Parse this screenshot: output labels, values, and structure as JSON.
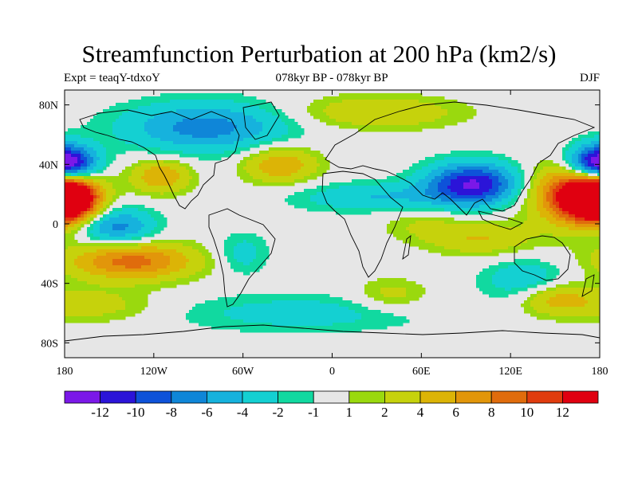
{
  "chart_data": {
    "type": "heatmap",
    "title": "Streamfunction Perturbation at 200 hPa (km2/s)",
    "subtitle_left": "Expt = teaqY-tdxoY",
    "subtitle_center": "078kyr BP - 078kyr BP",
    "subtitle_right": "DJF",
    "x_ticks": [
      {
        "value": -180,
        "label": "180"
      },
      {
        "value": -120,
        "label": "120W"
      },
      {
        "value": -60,
        "label": "60W"
      },
      {
        "value": 0,
        "label": "0"
      },
      {
        "value": 60,
        "label": "60E"
      },
      {
        "value": 120,
        "label": "120E"
      },
      {
        "value": 180,
        "label": "180"
      }
    ],
    "y_ticks": [
      {
        "value": 80,
        "label": "80N"
      },
      {
        "value": 40,
        "label": "40N"
      },
      {
        "value": 0,
        "label": "0"
      },
      {
        "value": -40,
        "label": "40S"
      },
      {
        "value": -80,
        "label": "80S"
      }
    ],
    "xlim": [
      -180,
      180
    ],
    "ylim": [
      -90,
      90
    ],
    "colorbar": {
      "colors": [
        "#7b18e8",
        "#2b14d8",
        "#0e52d9",
        "#0f86d8",
        "#16b2dd",
        "#14d0d2",
        "#11d9a0",
        "#e6e6e6",
        "#9ad90e",
        "#c6d20c",
        "#dcb406",
        "#e2960a",
        "#e06c0c",
        "#e03c0e",
        "#e00010"
      ],
      "labels": [
        "-12",
        "-10",
        "-8",
        "-6",
        "-4",
        "-2",
        "-1",
        "1",
        "2",
        "4",
        "6",
        "8",
        "10",
        "12"
      ],
      "levels": [
        -12,
        -10,
        -8,
        -6,
        -4,
        -2,
        -1,
        1,
        2,
        4,
        6,
        8,
        10,
        12
      ]
    },
    "field_features": [
      {
        "lon": -178,
        "lat": 40,
        "amp": -9,
        "sx": 14,
        "sy": 9
      },
      {
        "lon": 178,
        "lat": 40,
        "amp": -9,
        "sx": 14,
        "sy": 9
      },
      {
        "lon": -178,
        "lat": 17,
        "amp": 11,
        "sx": 14,
        "sy": 10
      },
      {
        "lon": 178,
        "lat": 17,
        "amp": 11,
        "sx": 14,
        "sy": 10
      },
      {
        "lon": 165,
        "lat": 20,
        "amp": 12,
        "sx": 22,
        "sy": 14
      },
      {
        "lon": -145,
        "lat": -2,
        "amp": -7,
        "sx": 18,
        "sy": 9
      },
      {
        "lon": -135,
        "lat": -25,
        "amp": 9,
        "sx": 30,
        "sy": 9
      },
      {
        "lon": -115,
        "lat": 32,
        "amp": 6,
        "sx": 14,
        "sy": 8
      },
      {
        "lon": -85,
        "lat": 65,
        "amp": -7,
        "sx": 40,
        "sy": 12
      },
      {
        "lon": -35,
        "lat": 40,
        "amp": 6,
        "sx": 18,
        "sy": 9
      },
      {
        "lon": 30,
        "lat": 75,
        "amp": 4,
        "sx": 40,
        "sy": 8
      },
      {
        "lon": 95,
        "lat": 27,
        "amp": -12,
        "sx": 22,
        "sy": 10
      },
      {
        "lon": 30,
        "lat": 18,
        "amp": -4,
        "sx": 40,
        "sy": 7
      },
      {
        "lon": 100,
        "lat": -10,
        "amp": 4,
        "sx": 25,
        "sy": 8
      },
      {
        "lon": 130,
        "lat": -38,
        "amp": -4,
        "sx": 20,
        "sy": 10
      },
      {
        "lon": 150,
        "lat": -50,
        "amp": 5,
        "sx": 18,
        "sy": 8
      },
      {
        "lon": 40,
        "lat": -48,
        "amp": 3,
        "sx": 18,
        "sy": 8
      },
      {
        "lon": -20,
        "lat": -60,
        "amp": -3,
        "sx": 60,
        "sy": 9
      },
      {
        "lon": -60,
        "lat": -20,
        "amp": -3,
        "sx": 12,
        "sy": 10
      },
      {
        "lon": -160,
        "lat": -55,
        "amp": 3,
        "sx": 30,
        "sy": 8
      },
      {
        "lon": 60,
        "lat": 0,
        "amp": 2,
        "sx": 20,
        "sy": 8
      }
    ]
  }
}
